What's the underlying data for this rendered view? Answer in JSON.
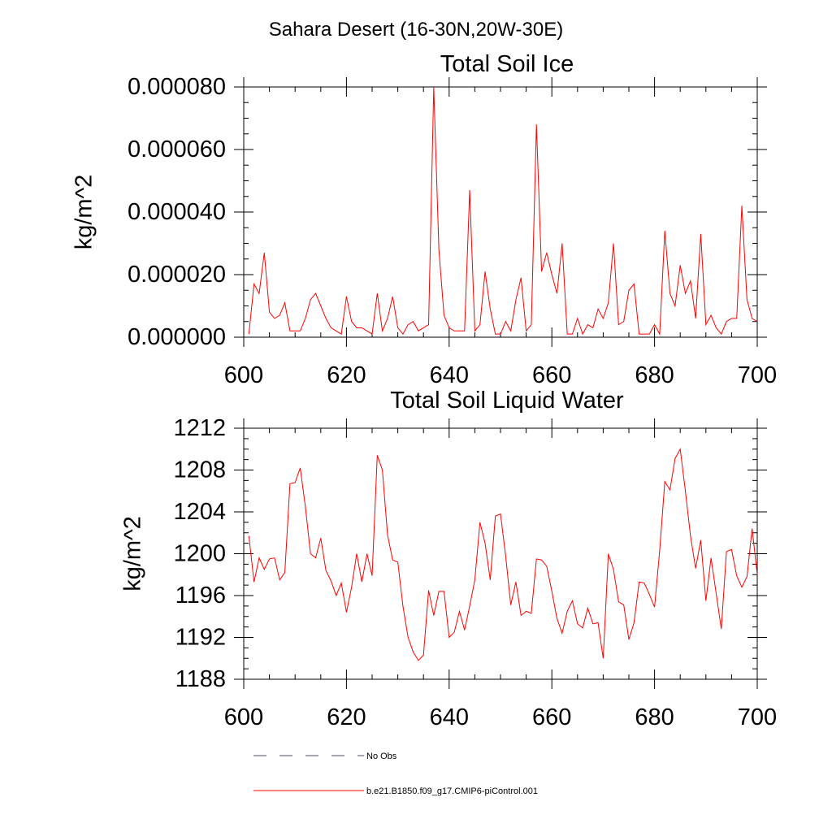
{
  "page": {
    "title": "Sahara Desert (16-30N,20W-30E)"
  },
  "colors": {
    "series": "#ff0000",
    "no_obs": "#4a4a8a",
    "axis": "#000000"
  },
  "legend": {
    "placement": "bottom-left",
    "items": [
      {
        "label": "No Obs",
        "style": "dashed",
        "color": "#4a4a8a"
      },
      {
        "label": "b.e21.B1850.f09_g17.CMIP6-piControl.001",
        "style": "solid",
        "color": "#ff0000"
      }
    ]
  },
  "chart_data": [
    {
      "type": "line",
      "title": "Total Soil Ice",
      "xlabel": "",
      "ylabel": "kg/m^2",
      "xlim": [
        600,
        700
      ],
      "ylim": [
        0,
        8e-05
      ],
      "grid": false,
      "x_ticks": [
        "600",
        "620",
        "640",
        "660",
        "680",
        "700"
      ],
      "y_ticks": [
        "0.000000",
        "0.000020",
        "0.000040",
        "0.000060",
        "0.000080"
      ],
      "x_start": 601,
      "series": [
        {
          "name": "b.e21.B1850.f09_g17.CMIP6-piControl.001",
          "values": [
            1e-06,
            1.7e-05,
            1.4e-05,
            2.7e-05,
            8e-06,
            6e-06,
            7e-06,
            1.1e-05,
            2e-06,
            2e-06,
            2e-06,
            6e-06,
            1.2e-05,
            1.4e-05,
            1e-05,
            6e-06,
            3e-06,
            2e-06,
            1e-06,
            1.3e-05,
            5e-06,
            3e-06,
            3e-06,
            2e-06,
            1e-06,
            1.4e-05,
            2e-06,
            6e-06,
            1.3e-05,
            3e-06,
            1e-06,
            4e-06,
            5e-06,
            2e-06,
            3e-06,
            4e-06,
            8e-05,
            2.8e-05,
            7e-06,
            3e-06,
            2e-06,
            2e-06,
            2e-06,
            4.7e-05,
            2e-06,
            4e-06,
            2.1e-05,
            9e-06,
            1e-06,
            1e-06,
            5e-06,
            2e-06,
            1.2e-05,
            1.9e-05,
            2e-06,
            4e-06,
            6.8e-05,
            2.1e-05,
            2.7e-05,
            2e-05,
            1.4e-05,
            3e-05,
            1e-06,
            1e-06,
            6e-06,
            1e-06,
            4e-06,
            3e-06,
            9e-06,
            6e-06,
            1.1e-05,
            3e-05,
            4e-06,
            5e-06,
            1.5e-05,
            1.7e-05,
            1e-06,
            1e-06,
            1e-06,
            4e-06,
            1e-06,
            3.4e-05,
            1.4e-05,
            1e-05,
            2.3e-05,
            1.4e-05,
            1.8e-05,
            6e-06,
            3.3e-05,
            4e-06,
            7e-06,
            3e-06,
            1e-06,
            5e-06,
            6e-06,
            6e-06,
            4.2e-05,
            1.2e-05,
            6e-06,
            5e-06
          ]
        }
      ]
    },
    {
      "type": "line",
      "title": "Total Soil Liquid Water",
      "xlabel": "",
      "ylabel": "kg/m^2",
      "xlim": [
        600,
        700
      ],
      "ylim": [
        1188,
        1212
      ],
      "grid": false,
      "x_ticks": [
        "600",
        "620",
        "640",
        "660",
        "680",
        "700"
      ],
      "y_ticks": [
        "1188",
        "1192",
        "1196",
        "1200",
        "1204",
        "1208",
        "1212"
      ],
      "x_start": 601,
      "series": [
        {
          "name": "b.e21.B1850.f09_g17.CMIP6-piControl.001",
          "values": [
            1201.7,
            1197.3,
            1199.6,
            1198.5,
            1199.5,
            1199.6,
            1197.5,
            1198.2,
            1206.7,
            1206.8,
            1208.2,
            1204.5,
            1200.0,
            1199.6,
            1201.5,
            1198.4,
            1197.4,
            1196.0,
            1197.2,
            1194.4,
            1196.8,
            1200.0,
            1197.3,
            1200.0,
            1197.9,
            1209.4,
            1208.0,
            1201.8,
            1199.4,
            1199.2,
            1195.0,
            1192.0,
            1190.6,
            1189.8,
            1190.3,
            1196.5,
            1194.1,
            1196.4,
            1196.4,
            1192.0,
            1192.5,
            1194.5,
            1192.7,
            1195.0,
            1197.5,
            1203.0,
            1201.0,
            1197.5,
            1203.6,
            1203.8,
            1199.8,
            1195.1,
            1197.3,
            1194.1,
            1194.5,
            1194.3,
            1199.5,
            1199.4,
            1198.8,
            1196.4,
            1193.8,
            1192.4,
            1194.5,
            1195.5,
            1193.3,
            1192.9,
            1194.8,
            1193.3,
            1193.4,
            1190.0,
            1200.0,
            1198.5,
            1195.4,
            1195.1,
            1191.8,
            1193.4,
            1197.3,
            1197.2,
            1196.1,
            1194.9,
            1200.3,
            1206.9,
            1206.1,
            1209.1,
            1210.0,
            1206.0,
            1201.7,
            1198.6,
            1201.3,
            1195.5,
            1199.6,
            1196.2,
            1192.8,
            1200.2,
            1200.4,
            1197.9,
            1196.8,
            1197.8,
            1202.4,
            1198.0
          ]
        }
      ]
    }
  ]
}
